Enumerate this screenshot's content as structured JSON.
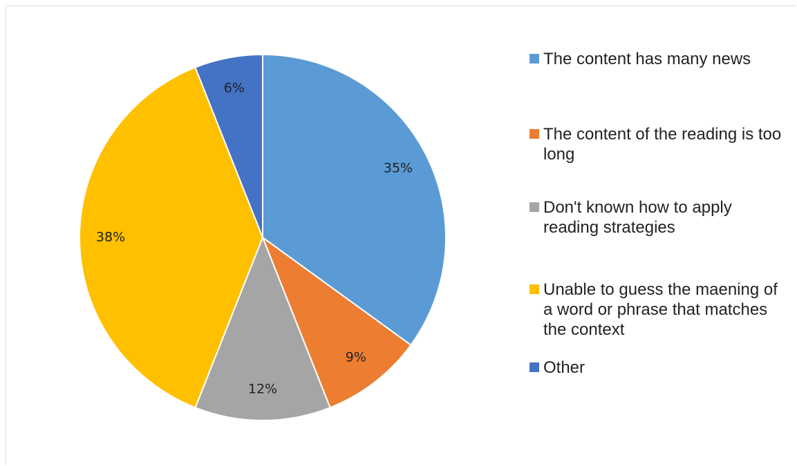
{
  "chart_data": {
    "type": "pie",
    "title": "",
    "categories": [
      "The content has many news",
      "The content of the reading is too long",
      "Don't known how to apply reading strategies",
      "Unable to guess the maening of a word or phrase that matches the context",
      "Other"
    ],
    "values": [
      35,
      9,
      12,
      38,
      6
    ],
    "data_labels": [
      "35%",
      "9%",
      "12%",
      "38%",
      "6%"
    ],
    "colors": [
      "#5b9bd5",
      "#ed7d31",
      "#a5a5a5",
      "#ffc000",
      "#4472c4"
    ],
    "start_angle": "12 o'clock",
    "direction": "clockwise",
    "legend_position": "right"
  }
}
